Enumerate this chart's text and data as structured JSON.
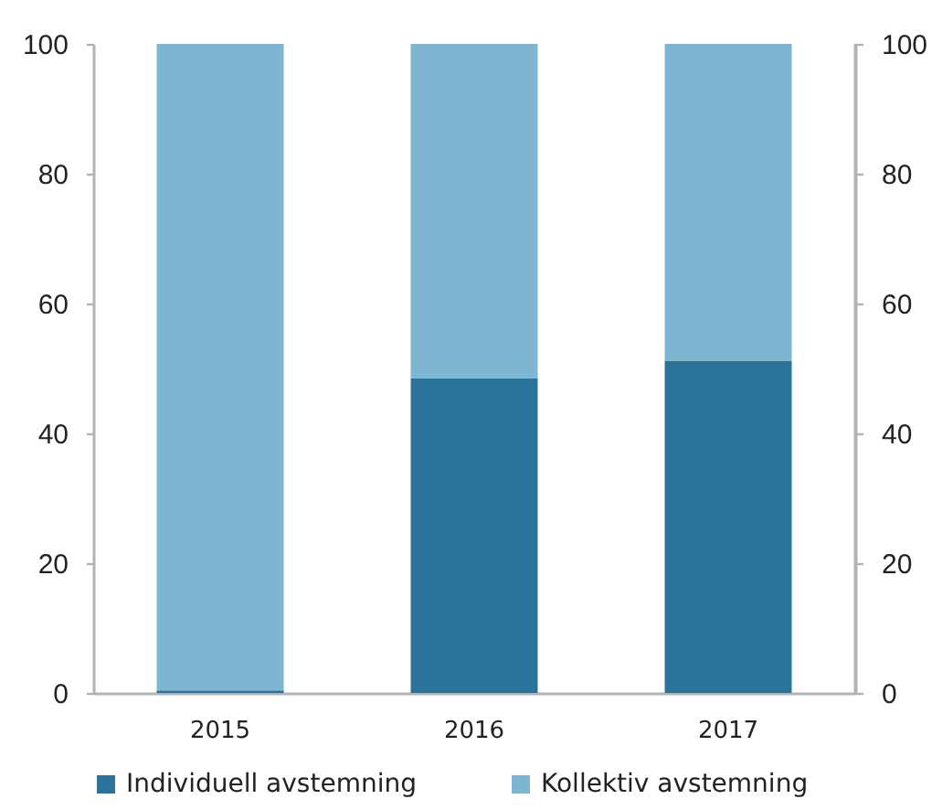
{
  "chart_data": {
    "type": "bar",
    "stacked": true,
    "categories": [
      "2015",
      "2016",
      "2017"
    ],
    "series": [
      {
        "name": "Individuell avstemning",
        "color": "#2b7399",
        "values": [
          0.4,
          48.5,
          51.2
        ]
      },
      {
        "name": "Kollektiv avstemning",
        "color": "#7eb5d0",
        "values": [
          99.6,
          51.5,
          48.8
        ]
      }
    ],
    "ylim": [
      0,
      100
    ],
    "yticks": [
      0,
      20,
      40,
      60,
      80,
      100
    ],
    "y2lim": [
      0,
      100
    ],
    "y2ticks": [
      0,
      20,
      40,
      60,
      80,
      100
    ],
    "grid": false,
    "legend": "bottom"
  }
}
